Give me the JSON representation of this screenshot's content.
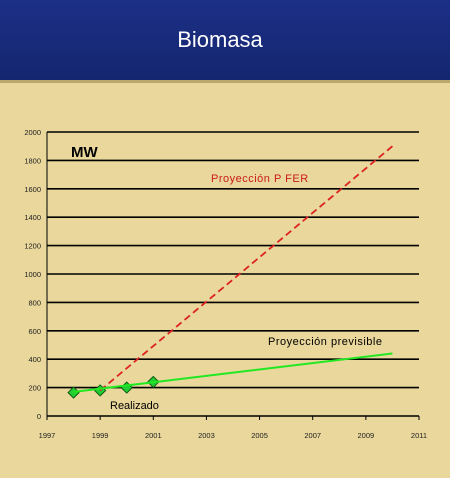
{
  "header": {
    "title": "Biomasa"
  },
  "chart_data": {
    "type": "line",
    "unit_label": "MW",
    "xlim": [
      1997,
      2011
    ],
    "ylim": [
      0,
      2000
    ],
    "x_ticks": [
      1997,
      1999,
      2001,
      2003,
      2005,
      2007,
      2009,
      2011
    ],
    "y_ticks": [
      0,
      200,
      400,
      600,
      800,
      1000,
      1200,
      1400,
      1600,
      1800,
      2000
    ],
    "grid": "horizontal",
    "series": [
      {
        "name": "Realizado",
        "style": "markers",
        "color": "#22cc33",
        "points": [
          [
            1998,
            165
          ],
          [
            1999,
            180
          ],
          [
            2000,
            200
          ],
          [
            2001,
            240
          ]
        ]
      },
      {
        "name": "Proyección P FER",
        "style": "dashed",
        "color": "#dd2222",
        "points": [
          [
            1999,
            180
          ],
          [
            2010,
            1900
          ]
        ]
      },
      {
        "name": "Proyección previsible",
        "style": "solid",
        "color": "#22e822",
        "points": [
          [
            1998,
            170
          ],
          [
            2010,
            440
          ]
        ]
      }
    ],
    "annotations": {
      "pfer": "Proyección P FER",
      "previsible": "Proyección previsible",
      "realizado": "Realizado"
    }
  }
}
